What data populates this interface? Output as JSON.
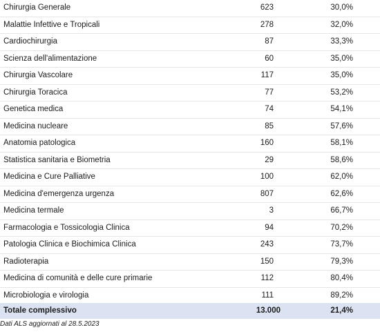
{
  "rows": [
    {
      "name": "Chirurgia Generale",
      "count": "623",
      "pct": "30,0%"
    },
    {
      "name": "Malattie Infettive e Tropicali",
      "count": "278",
      "pct": "32,0%"
    },
    {
      "name": "Cardiochirurgia",
      "count": "87",
      "pct": "33,3%"
    },
    {
      "name": "Scienza dell'alimentazione",
      "count": "60",
      "pct": "35,0%"
    },
    {
      "name": "Chirurgia Vascolare",
      "count": "117",
      "pct": "35,0%"
    },
    {
      "name": "Chirurgia Toracica",
      "count": "77",
      "pct": "53,2%"
    },
    {
      "name": "Genetica medica",
      "count": "74",
      "pct": "54,1%"
    },
    {
      "name": "Medicina nucleare",
      "count": "85",
      "pct": "57,6%"
    },
    {
      "name": "Anatomia patologica",
      "count": "160",
      "pct": "58,1%"
    },
    {
      "name": "Statistica sanitaria e Biometria",
      "count": "29",
      "pct": "58,6%"
    },
    {
      "name": "Medicina e Cure Palliative",
      "count": "100",
      "pct": "62,0%"
    },
    {
      "name": "Medicina d'emergenza urgenza",
      "count": "807",
      "pct": "62,6%"
    },
    {
      "name": "Medicina termale",
      "count": "3",
      "pct": "66,7%"
    },
    {
      "name": "Farmacologia e Tossicologia Clinica",
      "count": "94",
      "pct": "70,2%"
    },
    {
      "name": "Patologia Clinica e Biochimica Clinica",
      "count": "243",
      "pct": "73,7%"
    },
    {
      "name": "Radioterapia",
      "count": "150",
      "pct": "79,3%"
    },
    {
      "name": "Medicina di comunità e delle cure primarie",
      "count": "112",
      "pct": "80,4%"
    },
    {
      "name": "Microbiologia e virologia",
      "count": "111",
      "pct": "89,2%"
    }
  ],
  "total": {
    "label": "Totale complessivo",
    "count": "13.000",
    "pct": "21,4%"
  },
  "note": "Dati ALS aggiornati al 28.5.2023",
  "colors": {
    "total_bg": "#dbe2f1"
  }
}
